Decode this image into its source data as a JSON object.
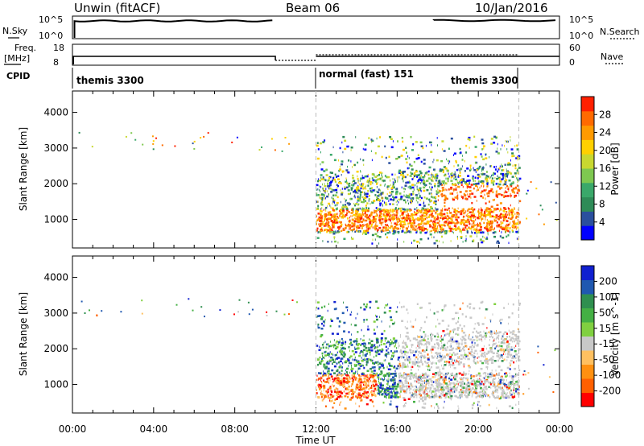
{
  "header": {
    "station": "Unwin (fitACF)",
    "beam": "Beam 06",
    "date": "10/Jan/2016"
  },
  "panels": {
    "nsky_label": "N.Sky",
    "nsearch_label": "N.Search",
    "nsky_ticks": [
      "10^5",
      "10^0"
    ],
    "nsearch_ticks": [
      "10^5",
      "10^0"
    ],
    "freq_label_1": "Freq.",
    "freq_label_2": "[MHz]",
    "freq_ticks": [
      "18",
      "8"
    ],
    "nave_label": "Nave",
    "nave_ticks": [
      "60",
      "0"
    ],
    "cpid_label": "CPID",
    "cpid_modes": [
      "themis 3300",
      "normal (fast) 151",
      "themis 3300"
    ]
  },
  "colors": {
    "power_scale": [
      "#0000ff",
      "#2a4f9e",
      "#2e8b57",
      "#3aa86a",
      "#7ec850",
      "#c8d830",
      "#ffd000",
      "#ff9a00",
      "#ff6a00",
      "#ff2000"
    ],
    "velocity_scale": [
      "#1020d0",
      "#2058b0",
      "#2f8f4f",
      "#44b044",
      "#80d040",
      "#c8c8c8",
      "#ffc060",
      "#ff9010",
      "#ff6000",
      "#ff0000"
    ],
    "dashed_line": "#bbbbbb"
  },
  "chart_data": [
    {
      "type": "heatmap",
      "name": "Power",
      "ylabel": "Slant Range [km]",
      "yticks": [
        "4000",
        "3000",
        "2000",
        "1000"
      ],
      "ylim": [
        200,
        4600
      ],
      "xlim": [
        0,
        24
      ],
      "colorbar_label": "Power [dB]",
      "colorbar_ticks": [
        "28",
        "24",
        "20",
        "16",
        "12",
        "8",
        "4"
      ],
      "colorbar_range": [
        0,
        32
      ]
    },
    {
      "type": "heatmap",
      "name": "Velocity",
      "ylabel": "Slant Range [km]",
      "yticks": [
        "4000",
        "3000",
        "2000",
        "1000"
      ],
      "ylim": [
        200,
        4600
      ],
      "xlim": [
        0,
        24
      ],
      "colorbar_label": "Velocity [m s^-1]",
      "colorbar_ticks": [
        "200",
        "100",
        "50",
        "15",
        "-15",
        "-50",
        "-100",
        "-200"
      ],
      "xtick_labels": [
        "00:00",
        "04:00",
        "08:00",
        "12:00",
        "16:00",
        "20:00",
        "00:00"
      ],
      "xlabel": "Time UT"
    }
  ]
}
